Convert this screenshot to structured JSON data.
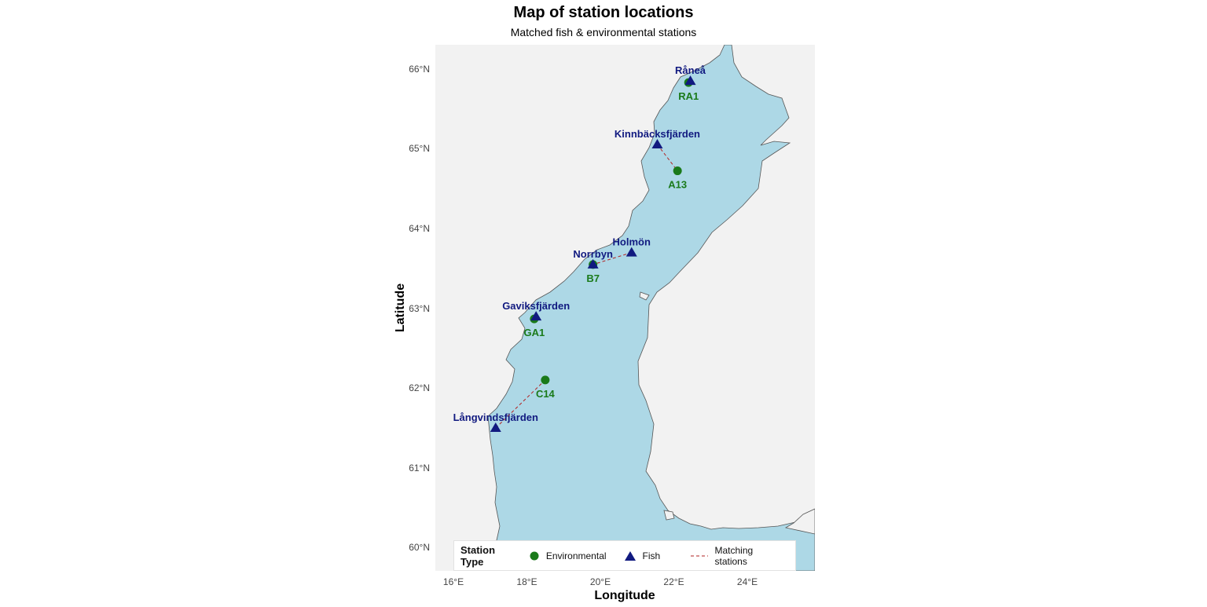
{
  "title": "Map of station locations",
  "subtitle": "Matched fish & environmental stations",
  "x_axis": {
    "title": "Longitude",
    "ticks": [
      "16°E",
      "18°E",
      "20°E",
      "22°E",
      "24°E"
    ],
    "values": [
      16,
      18,
      20,
      22,
      24
    ]
  },
  "y_axis": {
    "title": "Latitude",
    "ticks": [
      "60°N",
      "61°N",
      "62°N",
      "63°N",
      "64°N",
      "65°N",
      "66°N"
    ],
    "values": [
      60,
      61,
      62,
      63,
      64,
      65,
      66
    ]
  },
  "colors": {
    "sea": "#add8e6",
    "land": "#f2f2f2",
    "coast": "#555555",
    "fish": "#111a80",
    "env": "#1a7a1a",
    "match_line": "#b22222"
  },
  "legend": {
    "title": "Station Type",
    "environmental_label": "Environmental",
    "fish_label": "Fish",
    "line_label": "Matching stations",
    "placement": "bottom-inside"
  },
  "fish_stations": [
    {
      "name": "Råneå",
      "lon": 22.45,
      "lat": 65.85
    },
    {
      "name": "Kinnbäcksfjärden",
      "lon": 21.55,
      "lat": 65.05
    },
    {
      "name": "Holmön",
      "lon": 20.85,
      "lat": 63.7
    },
    {
      "name": "Norrbyn",
      "lon": 19.8,
      "lat": 63.55
    },
    {
      "name": "Gaviksfjärden",
      "lon": 18.25,
      "lat": 62.9
    },
    {
      "name": "Långvindsfjärden",
      "lon": 17.15,
      "lat": 61.5
    }
  ],
  "env_stations": [
    {
      "name": "RA1",
      "lon": 22.4,
      "lat": 65.83
    },
    {
      "name": "A13",
      "lon": 22.1,
      "lat": 64.72
    },
    {
      "name": "B7",
      "lon": 19.8,
      "lat": 63.55
    },
    {
      "name": "GA1",
      "lon": 18.2,
      "lat": 62.87
    },
    {
      "name": "C14",
      "lon": 18.5,
      "lat": 62.1
    }
  ],
  "matches": [
    [
      "Råneå",
      "RA1"
    ],
    [
      "Kinnbäcksfjärden",
      "A13"
    ],
    [
      "Holmön",
      "B7"
    ],
    [
      "Norrbyn",
      "B7"
    ],
    [
      "Gaviksfjärden",
      "GA1"
    ],
    [
      "Långvindsfjärden",
      "C14"
    ]
  ]
}
